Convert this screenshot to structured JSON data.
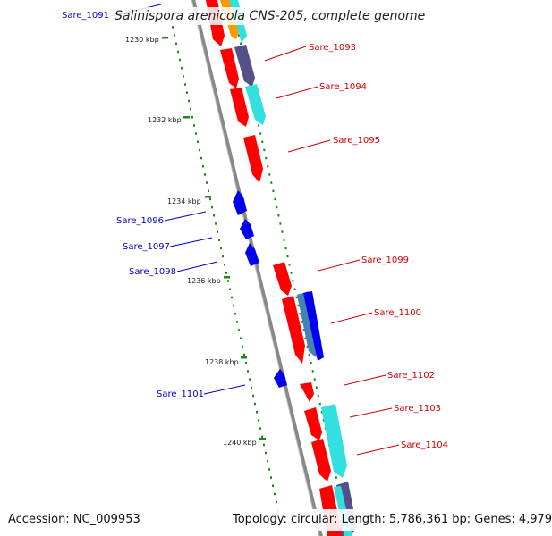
{
  "title": {
    "top_gene": "Sare_1091",
    "organism": "Salinispora arenicola CNS-205, complete genome"
  },
  "footer": {
    "accession": "Accession: NC_009953",
    "summary": "Topology: circular; Length: 5,786,361 bp; Genes: 4,979"
  },
  "colors": {
    "backbone": "#888888",
    "tick": "#1a8a1a",
    "forward_label": "#d00000",
    "reverse_label": "#0000cc",
    "red": "#ff0000",
    "cyan": "#33e0e0",
    "purple": "#55508a",
    "orange": "#ff9900",
    "blue": "#0000ee",
    "steel": "#4682b4"
  },
  "scale": {
    "labels": [
      "1230 kbp",
      "1232 kbp",
      "1234 kbp",
      "1236 kbp",
      "1238 kbp",
      "1240 kbp"
    ]
  },
  "genes_forward": [
    "Sare_1093",
    "Sare_1094",
    "Sare_1095",
    "Sare_1099",
    "Sare_1100",
    "Sare_1102",
    "Sare_1103",
    "Sare_1104"
  ],
  "genes_reverse": [
    "Sare_1096",
    "Sare_1097",
    "Sare_1098",
    "Sare_1101"
  ]
}
